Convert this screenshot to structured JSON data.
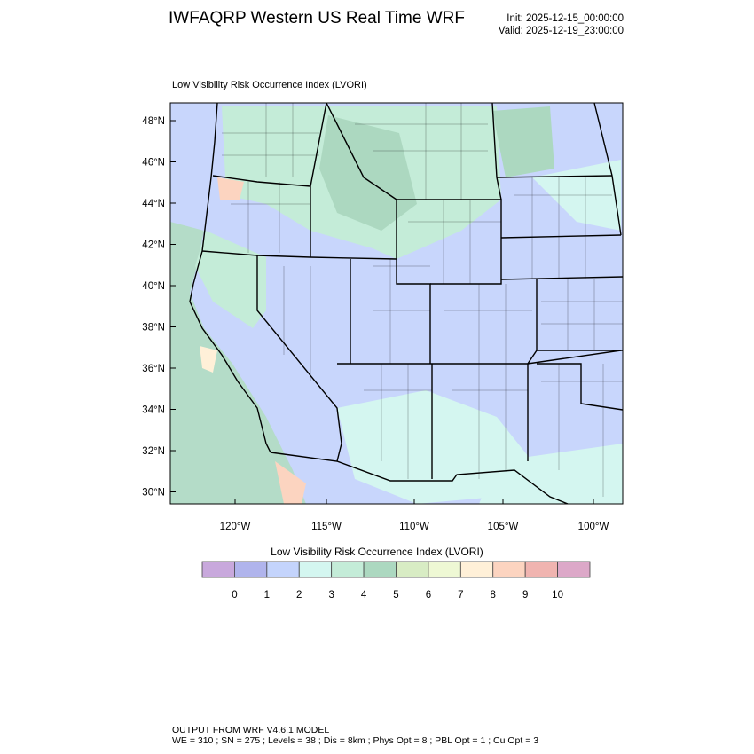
{
  "header": {
    "title": "IWFAQRP Western US Real Time WRF",
    "init": "Init: 2025-12-15_00:00:00",
    "valid": "Valid: 2025-12-19_23:00:00"
  },
  "map": {
    "subtitle": "Low Visibility Risk Occurrence Index   (LVORI)",
    "lat_labels": [
      "48°N",
      "46°N",
      "44°N",
      "42°N",
      "40°N",
      "38°N",
      "36°N",
      "34°N",
      "32°N",
      "30°N"
    ],
    "lon_labels": [
      "120°W",
      "115°W",
      "110°W",
      "105°W",
      "100°W"
    ],
    "dominant_colors": {
      "land_low": "#c8d6fc",
      "mountain": "#c4ecd8",
      "ocean": "#b4dcc8"
    }
  },
  "colorbar": {
    "title": "Low Visibility Risk Occurrence Index  (LVORI)",
    "colors": [
      "#c8a8dc",
      "#b0b4ec",
      "#c4d4fc",
      "#d4f6f0",
      "#c4ecd8",
      "#acd8c0",
      "#d8ecc4",
      "#eef8d4",
      "#fff0d8",
      "#fcd4c0",
      "#f0b4b0",
      "#dca8c8"
    ],
    "labels": [
      "0",
      "1",
      "2",
      "3",
      "4",
      "5",
      "6",
      "7",
      "8",
      "9",
      "10"
    ]
  },
  "footer": {
    "line1": "OUTPUT FROM WRF V4.6.1 MODEL",
    "line2": "WE = 310 ; SN = 275 ; Levels = 38 ; Dis = 8km ; Phys Opt = 8 ; PBL Opt = 1 ; Cu Opt = 3"
  }
}
